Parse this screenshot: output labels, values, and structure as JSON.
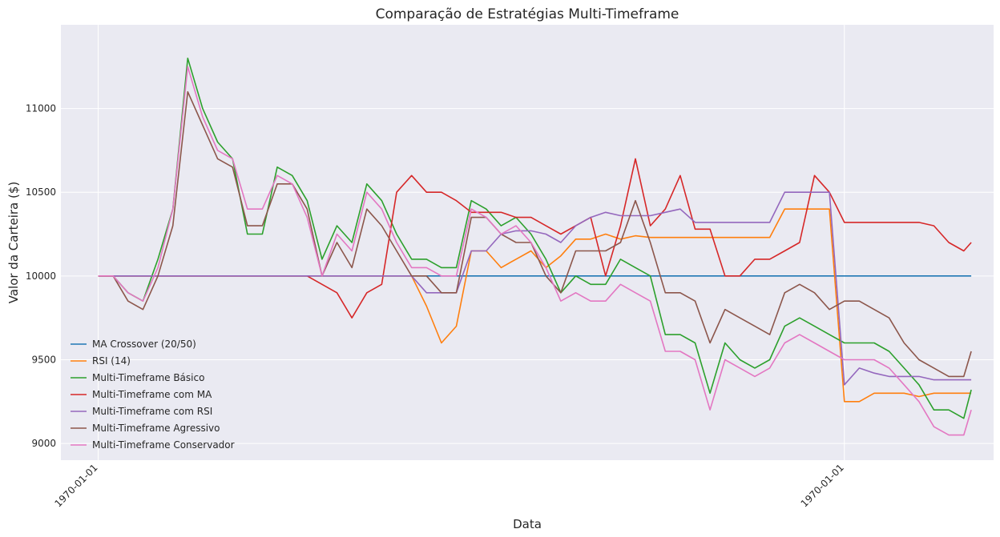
{
  "chart_data": {
    "type": "line",
    "title": "Comparação de Estratégias Multi-Timeframe",
    "xlabel": "Data",
    "ylabel": "Valor da Carteira ($)",
    "x_tick_labels": [
      "1970-01-01",
      "1970-01-01"
    ],
    "x_tick_positions": [
      0,
      1000
    ],
    "xlim": [
      -50,
      1200
    ],
    "ylim": [
      8900,
      11500
    ],
    "y_ticks": [
      9000,
      9500,
      10000,
      10500,
      11000
    ],
    "grid": true,
    "legend_position": "lower-left",
    "background": "#eaeaf2",
    "x": [
      0,
      20,
      40,
      60,
      80,
      100,
      120,
      140,
      160,
      180,
      200,
      220,
      240,
      260,
      280,
      300,
      320,
      340,
      360,
      380,
      400,
      420,
      440,
      460,
      480,
      500,
      520,
      540,
      560,
      580,
      600,
      620,
      640,
      660,
      680,
      700,
      720,
      740,
      760,
      780,
      800,
      820,
      840,
      860,
      880,
      900,
      920,
      940,
      960,
      980,
      1000,
      1020,
      1040,
      1060,
      1080,
      1100,
      1120,
      1140,
      1160,
      1170
    ],
    "series": [
      {
        "name": "MA Crossover (20/50)",
        "color": "#1f77b4",
        "values": [
          10000,
          10000,
          10000,
          10000,
          10000,
          10000,
          10000,
          10000,
          10000,
          10000,
          10000,
          10000,
          10000,
          10000,
          10000,
          10000,
          10000,
          10000,
          10000,
          10000,
          10000,
          10000,
          10000,
          10000,
          10000,
          10000,
          10000,
          10000,
          10000,
          10000,
          10000,
          10000,
          10000,
          10000,
          10000,
          10000,
          10000,
          10000,
          10000,
          10000,
          10000,
          10000,
          10000,
          10000,
          10000,
          10000,
          10000,
          10000,
          10000,
          10000,
          10000,
          10000,
          10000,
          10000,
          10000,
          10000,
          10000,
          10000,
          10000,
          10000
        ]
      },
      {
        "name": "RSI (14)",
        "color": "#ff7f0e",
        "values": [
          10000,
          10000,
          10000,
          10000,
          10000,
          10000,
          10000,
          10000,
          10000,
          10000,
          10000,
          10000,
          10000,
          10000,
          10000,
          10000,
          10000,
          10000,
          10000,
          10000,
          10000,
          10000,
          9820,
          9600,
          9700,
          10150,
          10150,
          10050,
          10100,
          10150,
          10050,
          10120,
          10220,
          10220,
          10250,
          10220,
          10240,
          10230,
          10230,
          10230,
          10230,
          10230,
          10230,
          10230,
          10230,
          10230,
          10400,
          10400,
          10400,
          10400,
          9250,
          9250,
          9300,
          9300,
          9300,
          9280,
          9300,
          9300,
          9300,
          9300
        ]
      },
      {
        "name": "Multi-Timeframe Básico",
        "color": "#2ca02c",
        "values": [
          10000,
          10000,
          9900,
          9850,
          10100,
          10400,
          11300,
          11000,
          10800,
          10700,
          10250,
          10250,
          10650,
          10600,
          10450,
          10100,
          10300,
          10200,
          10550,
          10450,
          10250,
          10100,
          10100,
          10050,
          10050,
          10450,
          10400,
          10300,
          10350,
          10250,
          10100,
          9900,
          10000,
          9950,
          9950,
          10100,
          10050,
          10000,
          9650,
          9650,
          9600,
          9300,
          9600,
          9500,
          9450,
          9500,
          9700,
          9750,
          9700,
          9650,
          9600,
          9600,
          9600,
          9550,
          9450,
          9350,
          9200,
          9200,
          9150,
          9320
        ]
      },
      {
        "name": "Multi-Timeframe com MA",
        "color": "#d62728",
        "values": [
          10000,
          10000,
          10000,
          10000,
          10000,
          10000,
          10000,
          10000,
          10000,
          10000,
          10000,
          10000,
          10000,
          10000,
          10000,
          9950,
          9900,
          9750,
          9900,
          9950,
          10500,
          10600,
          10500,
          10500,
          10450,
          10380,
          10380,
          10380,
          10350,
          10350,
          10300,
          10250,
          10300,
          10350,
          10000,
          10300,
          10700,
          10300,
          10400,
          10600,
          10280,
          10280,
          10000,
          10000,
          10100,
          10100,
          10150,
          10200,
          10600,
          10500,
          10320,
          10320,
          10320,
          10320,
          10320,
          10320,
          10300,
          10200,
          10150,
          10200
        ]
      },
      {
        "name": "Multi-Timeframe com RSI",
        "color": "#9467bd",
        "values": [
          10000,
          10000,
          10000,
          10000,
          10000,
          10000,
          10000,
          10000,
          10000,
          10000,
          10000,
          10000,
          10000,
          10000,
          10000,
          10000,
          10000,
          10000,
          10000,
          10000,
          10000,
          10000,
          9900,
          9900,
          9900,
          10150,
          10150,
          10250,
          10270,
          10270,
          10250,
          10200,
          10300,
          10350,
          10380,
          10360,
          10360,
          10360,
          10380,
          10400,
          10320,
          10320,
          10320,
          10320,
          10320,
          10320,
          10500,
          10500,
          10500,
          10500,
          9350,
          9450,
          9420,
          9400,
          9400,
          9400,
          9380,
          9380,
          9380,
          9380
        ]
      },
      {
        "name": "Multi-Timeframe Agressivo",
        "color": "#8c564b",
        "values": [
          10000,
          10000,
          9850,
          9800,
          10000,
          10300,
          11100,
          10900,
          10700,
          10650,
          10300,
          10300,
          10550,
          10550,
          10400,
          10000,
          10200,
          10050,
          10400,
          10300,
          10150,
          10000,
          10000,
          9900,
          9900,
          10350,
          10350,
          10250,
          10200,
          10200,
          10000,
          9900,
          10150,
          10150,
          10150,
          10200,
          10450,
          10200,
          9900,
          9900,
          9850,
          9600,
          9800,
          9750,
          9700,
          9650,
          9900,
          9950,
          9900,
          9800,
          9850,
          9850,
          9800,
          9750,
          9600,
          9500,
          9450,
          9400,
          9400,
          9550
        ]
      },
      {
        "name": "Multi-Timeframe Conservador",
        "color": "#e377c2",
        "values": [
          10000,
          10000,
          9900,
          9850,
          10050,
          10400,
          11250,
          10950,
          10750,
          10700,
          10400,
          10400,
          10600,
          10550,
          10350,
          10000,
          10250,
          10150,
          10500,
          10400,
          10200,
          10050,
          10050,
          10000,
          10000,
          10400,
          10350,
          10250,
          10300,
          10200,
          10050,
          9850,
          9900,
          9850,
          9850,
          9950,
          9900,
          9850,
          9550,
          9550,
          9500,
          9200,
          9500,
          9450,
          9400,
          9450,
          9600,
          9650,
          9600,
          9550,
          9500,
          9500,
          9500,
          9450,
          9350,
          9250,
          9100,
          9050,
          9050,
          9200
        ]
      }
    ]
  }
}
